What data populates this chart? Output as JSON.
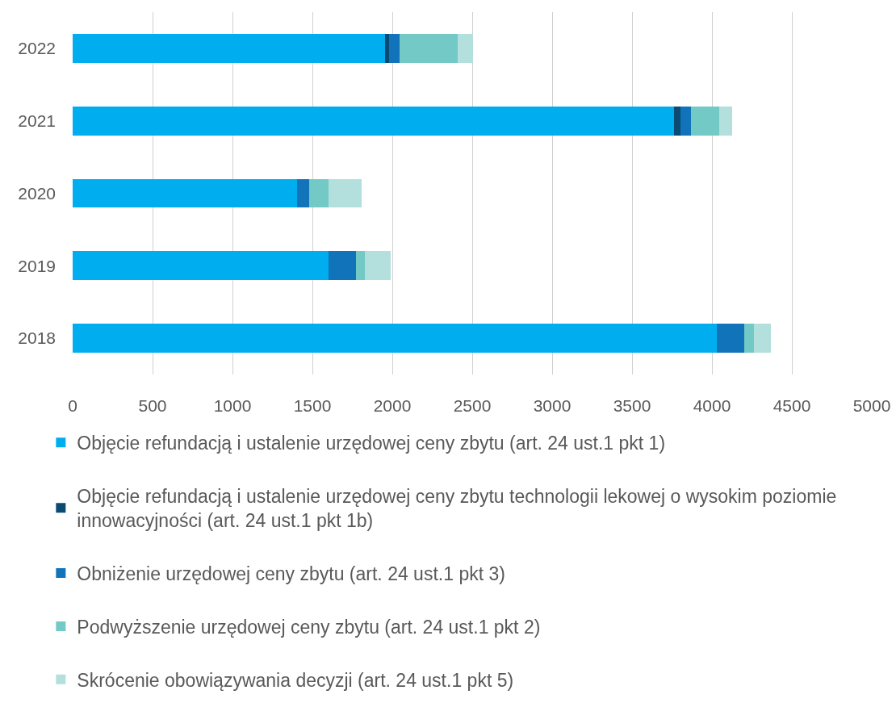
{
  "chart_data": {
    "type": "bar",
    "orientation": "horizontal",
    "stacked": true,
    "categories": [
      "2022",
      "2021",
      "2020",
      "2019",
      "2018"
    ],
    "series": [
      {
        "name": "Objęcie refundacją i ustalenie urzędowej ceny zbytu (art. 24 ust.1 pkt 1)",
        "color": "#00aeef",
        "values": [
          1955,
          3765,
          1403,
          1602,
          4031
        ]
      },
      {
        "name": "Objęcie refundacją i ustalenie urzędowej ceny zbytu technologii lekowej o wysokim poziomie innowacyjności (art. 24 ust.1 pkt 1b)",
        "color": "#0b4a73",
        "values": [
          26,
          39,
          null,
          null,
          null
        ]
      },
      {
        "name": "Obniżenie urzędowej ceny zbytu (art. 24 ust.1 pkt 3)",
        "color": "#1174bb",
        "values": [
          66,
          66,
          78,
          173,
          172
        ]
      },
      {
        "name": "Podwyższenie urzędowej ceny zbytu (art. 24 ust.1 pkt 2)",
        "color": "#72c9c5",
        "values": [
          363,
          175,
          121,
          55,
          58
        ]
      },
      {
        "name": "Skrócenie obowiązywania decyzji (art. 24 ust.1 pkt 5)",
        "color": "#b3dfdd",
        "values": [
          96,
          83,
          204,
          162,
          107
        ]
      }
    ],
    "xlim": [
      0,
      5000
    ],
    "xticks": [
      0,
      500,
      1000,
      1500,
      2000,
      2500,
      3000,
      3500,
      4000,
      4500,
      5000
    ],
    "grid": "x",
    "legend": "bottom"
  }
}
